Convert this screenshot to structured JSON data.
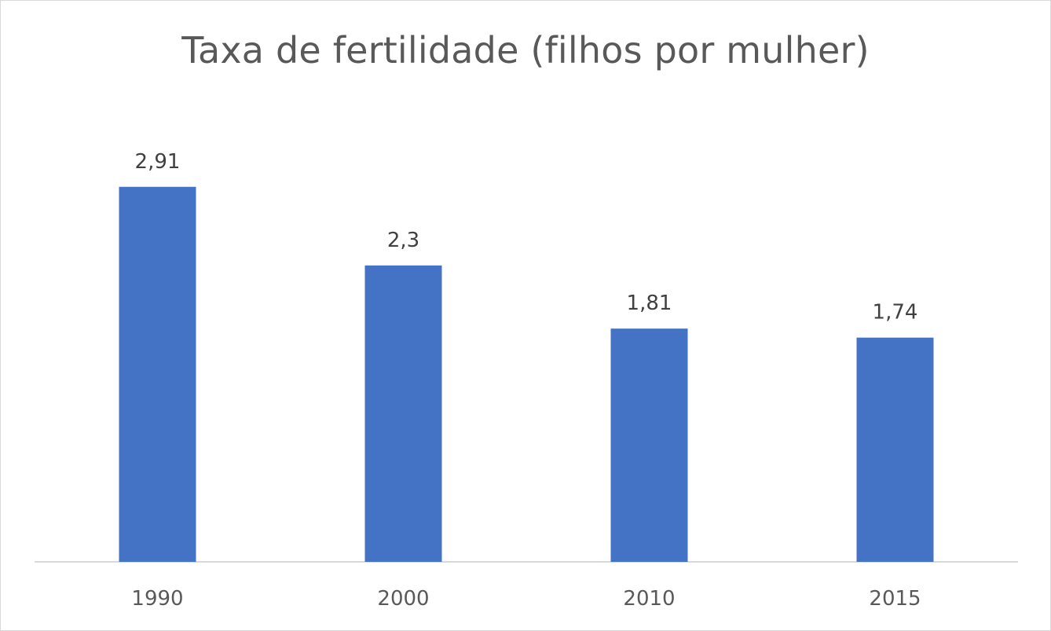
{
  "chart_data": {
    "type": "bar",
    "title": "Taxa de fertilidade (filhos por mulher)",
    "categories": [
      "1990",
      "2000",
      "2010",
      "2015"
    ],
    "values": [
      2.91,
      2.3,
      1.81,
      1.74
    ],
    "value_labels": [
      "2,91",
      "2,3",
      "1,81",
      "1,74"
    ],
    "xlabel": "",
    "ylabel": "",
    "ylim": [
      0,
      3.5
    ],
    "grid": false,
    "legend": "none",
    "bar_color": "#4472C4"
  }
}
